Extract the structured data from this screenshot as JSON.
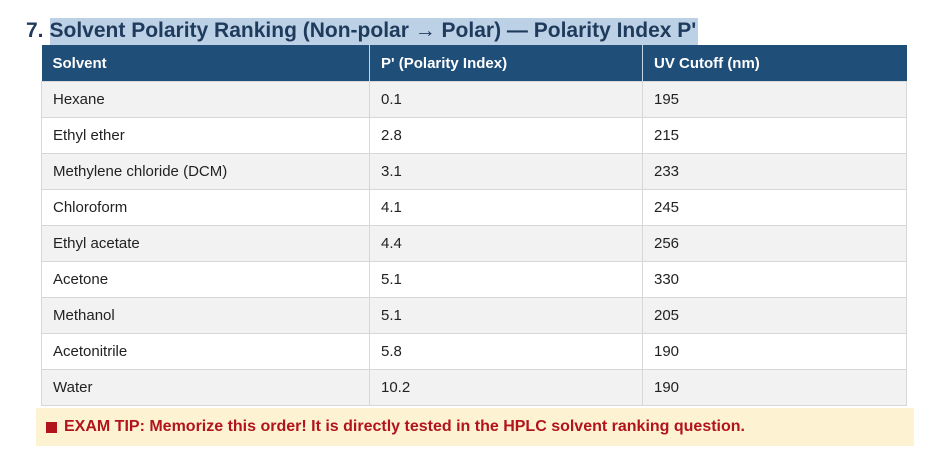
{
  "section": {
    "number": "7.",
    "title": "Solvent Polarity Ranking (Non-polar → Polar) — Polarity Index P'"
  },
  "table": {
    "headers": [
      "Solvent",
      "P' (Polarity Index)",
      "UV Cutoff (nm)"
    ],
    "rows": [
      [
        "Hexane",
        "0.1",
        "195"
      ],
      [
        "Ethyl ether",
        "2.8",
        "215"
      ],
      [
        "Methylene chloride (DCM)",
        "3.1",
        "233"
      ],
      [
        "Chloroform",
        "4.1",
        "245"
      ],
      [
        "Ethyl acetate",
        "4.4",
        "256"
      ],
      [
        "Acetone",
        "5.1",
        "330"
      ],
      [
        "Methanol",
        "5.1",
        "205"
      ],
      [
        "Acetonitrile",
        "5.8",
        "190"
      ],
      [
        "Water",
        "10.2",
        "190"
      ]
    ]
  },
  "tip": {
    "icon": "square-bullet-icon",
    "text": "EXAM TIP: Memorize this order! It is directly tested in the HPLC solvent ranking question."
  },
  "colors": {
    "header_bg": "#1f4e79",
    "heading_text": "#1f3b5c",
    "selection_highlight": "#bcd0e6",
    "tip_bg": "#fdf3d2",
    "tip_text": "#b2141b",
    "row_stripe": "#f2f2f2"
  }
}
